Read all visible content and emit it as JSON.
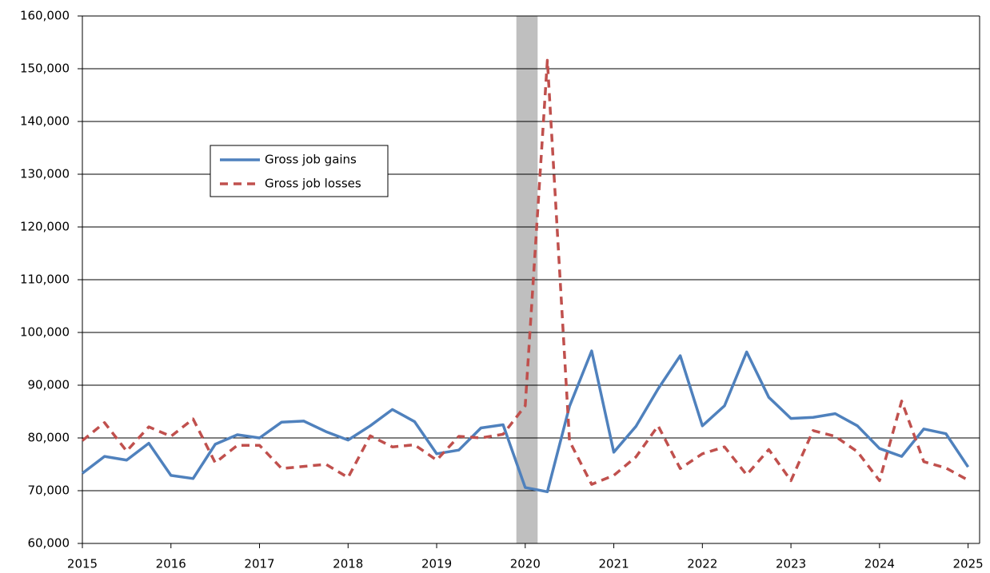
{
  "chart_data": {
    "type": "line",
    "x": [
      2015,
      2015.25,
      2015.5,
      2015.75,
      2016,
      2016.25,
      2016.5,
      2016.75,
      2017,
      2017.25,
      2017.5,
      2017.75,
      2018,
      2018.25,
      2018.5,
      2018.75,
      2019,
      2019.25,
      2019.5,
      2019.75,
      2020,
      2020.25,
      2020.5,
      2020.75,
      2021,
      2021.25,
      2021.5,
      2021.75,
      2022,
      2022.25,
      2022.5,
      2022.75,
      2023,
      2023.25,
      2023.5,
      2023.75,
      2024,
      2024.25,
      2024.5,
      2024.75,
      2025
    ],
    "series": [
      {
        "name": "Gross job gains",
        "color": "#4f81bd",
        "dash": "solid",
        "values": [
          73300,
          76500,
          75800,
          79000,
          72900,
          72300,
          78800,
          80600,
          80000,
          83000,
          83200,
          81200,
          79600,
          82300,
          85400,
          83100,
          77000,
          77700,
          81900,
          82500,
          70600,
          69800,
          86000,
          96500,
          77300,
          82200,
          89300,
          95600,
          82300,
          86100,
          96300,
          87700,
          83700,
          83900,
          84600,
          82300,
          78000,
          76500,
          81700,
          80800,
          74500
        ]
      },
      {
        "name": "Gross job losses",
        "color": "#c0504d",
        "dash": "dashed",
        "values": [
          79500,
          82900,
          77500,
          82100,
          80300,
          83600,
          75300,
          78600,
          78600,
          74200,
          74600,
          75000,
          72500,
          80400,
          78300,
          78700,
          75800,
          80300,
          80000,
          80700,
          86100,
          151600,
          79400,
          71200,
          72900,
          76400,
          82300,
          74200,
          77000,
          78300,
          73000,
          77800,
          71900,
          81400,
          80300,
          77400,
          71900,
          87000,
          75500,
          74300,
          72000
        ]
      }
    ],
    "shaded_range": [
      2019.9,
      2020.14
    ],
    "xlim": [
      2015,
      2025.13
    ],
    "xticks": [
      2015,
      2016,
      2017,
      2018,
      2019,
      2020,
      2021,
      2022,
      2023,
      2024,
      2025
    ],
    "ylim": [
      60000,
      160000
    ],
    "yticks": [
      {
        "value": 60000,
        "label": "60,000"
      },
      {
        "value": 70000,
        "label": "70,000"
      },
      {
        "value": 80000,
        "label": "80,000"
      },
      {
        "value": 90000,
        "label": "90,000"
      },
      {
        "value": 100000,
        "label": "100,000"
      },
      {
        "value": 110000,
        "label": "110,000"
      },
      {
        "value": 120000,
        "label": "120,000"
      },
      {
        "value": 130000,
        "label": "130,000"
      },
      {
        "value": 140000,
        "label": "140,000"
      },
      {
        "value": 150000,
        "label": "150,000"
      },
      {
        "value": 160000,
        "label": "160,000"
      }
    ],
    "grid": true,
    "legend": "upper-left"
  }
}
